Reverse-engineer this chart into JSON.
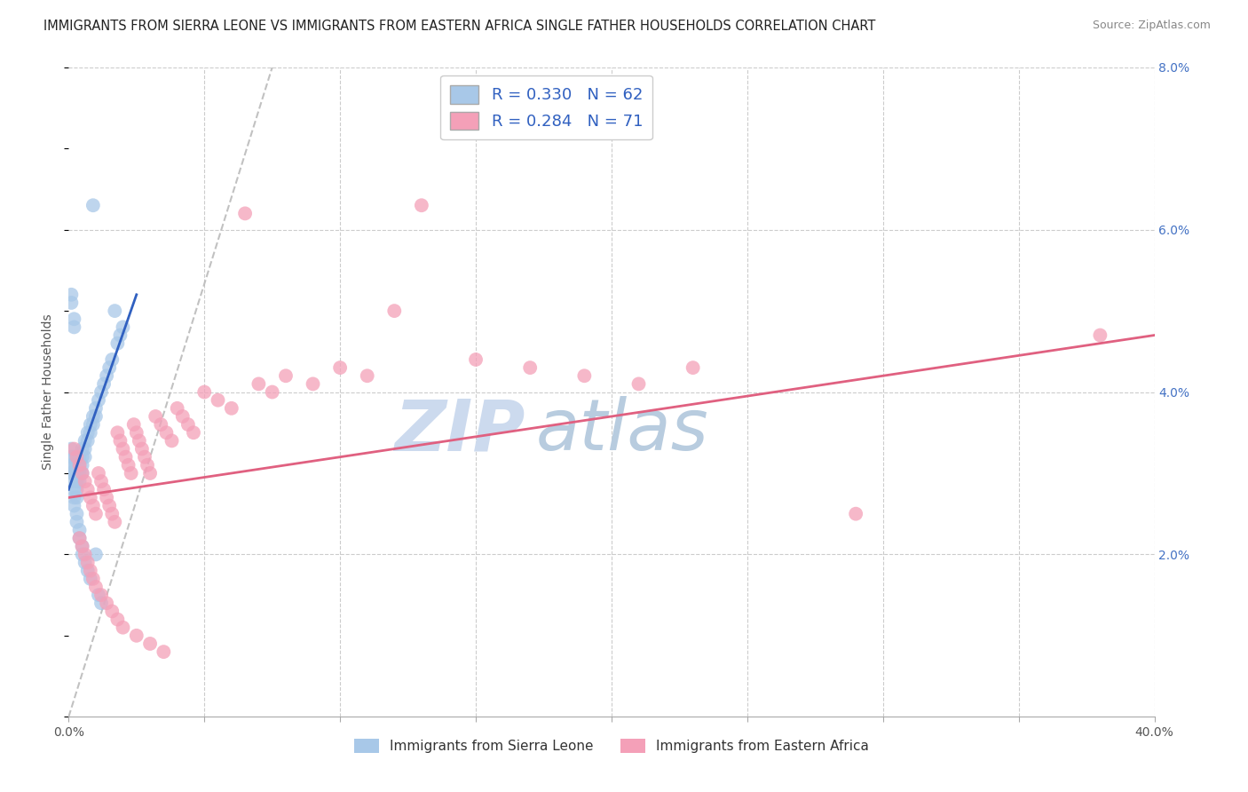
{
  "title": "IMMIGRANTS FROM SIERRA LEONE VS IMMIGRANTS FROM EASTERN AFRICA SINGLE FATHER HOUSEHOLDS CORRELATION CHART",
  "source": "Source: ZipAtlas.com",
  "ylabel": "Single Father Households",
  "legend_label1": "Immigrants from Sierra Leone",
  "legend_label2": "Immigrants from Eastern Africa",
  "color_blue": "#a8c8e8",
  "color_pink": "#f4a0b8",
  "color_blue_line": "#3060c0",
  "color_pink_line": "#e06080",
  "watermark_zip": "ZIP",
  "watermark_atlas": "atlas",
  "watermark_color_zip": "#c8d8ec",
  "watermark_color_atlas": "#b8cce0",
  "background_color": "#ffffff",
  "grid_color": "#cccccc",
  "R_blue": 0.33,
  "N_blue": 62,
  "R_pink": 0.284,
  "N_pink": 71,
  "xlim": [
    0.0,
    0.4
  ],
  "ylim": [
    0.0,
    0.08
  ],
  "blue_x": [
    0.001,
    0.001,
    0.001,
    0.001,
    0.001,
    0.002,
    0.002,
    0.002,
    0.002,
    0.002,
    0.002,
    0.003,
    0.003,
    0.003,
    0.003,
    0.003,
    0.004,
    0.004,
    0.004,
    0.004,
    0.005,
    0.005,
    0.005,
    0.005,
    0.006,
    0.006,
    0.006,
    0.007,
    0.007,
    0.008,
    0.008,
    0.009,
    0.009,
    0.01,
    0.01,
    0.011,
    0.012,
    0.013,
    0.014,
    0.015,
    0.016,
    0.017,
    0.018,
    0.019,
    0.02,
    0.001,
    0.001,
    0.002,
    0.002,
    0.003,
    0.003,
    0.004,
    0.004,
    0.005,
    0.005,
    0.006,
    0.007,
    0.008,
    0.009,
    0.01,
    0.011,
    0.012
  ],
  "blue_y": [
    0.03,
    0.031,
    0.032,
    0.033,
    0.029,
    0.03,
    0.031,
    0.032,
    0.028,
    0.027,
    0.026,
    0.031,
    0.03,
    0.029,
    0.028,
    0.027,
    0.032,
    0.031,
    0.03,
    0.029,
    0.033,
    0.032,
    0.031,
    0.03,
    0.034,
    0.033,
    0.032,
    0.035,
    0.034,
    0.036,
    0.035,
    0.037,
    0.036,
    0.038,
    0.037,
    0.039,
    0.04,
    0.041,
    0.042,
    0.043,
    0.044,
    0.05,
    0.046,
    0.047,
    0.048,
    0.051,
    0.052,
    0.048,
    0.049,
    0.025,
    0.024,
    0.023,
    0.022,
    0.021,
    0.02,
    0.019,
    0.018,
    0.017,
    0.063,
    0.02,
    0.015,
    0.014
  ],
  "pink_x": [
    0.002,
    0.003,
    0.004,
    0.005,
    0.006,
    0.007,
    0.008,
    0.009,
    0.01,
    0.011,
    0.012,
    0.013,
    0.014,
    0.015,
    0.016,
    0.017,
    0.018,
    0.019,
    0.02,
    0.021,
    0.022,
    0.023,
    0.024,
    0.025,
    0.026,
    0.027,
    0.028,
    0.029,
    0.03,
    0.032,
    0.034,
    0.036,
    0.038,
    0.04,
    0.042,
    0.044,
    0.046,
    0.05,
    0.055,
    0.06,
    0.065,
    0.07,
    0.075,
    0.08,
    0.09,
    0.1,
    0.11,
    0.12,
    0.13,
    0.15,
    0.17,
    0.19,
    0.21,
    0.23,
    0.004,
    0.005,
    0.006,
    0.007,
    0.008,
    0.009,
    0.01,
    0.012,
    0.014,
    0.016,
    0.018,
    0.02,
    0.025,
    0.03,
    0.035,
    0.29,
    0.38
  ],
  "pink_y": [
    0.033,
    0.032,
    0.031,
    0.03,
    0.029,
    0.028,
    0.027,
    0.026,
    0.025,
    0.03,
    0.029,
    0.028,
    0.027,
    0.026,
    0.025,
    0.024,
    0.035,
    0.034,
    0.033,
    0.032,
    0.031,
    0.03,
    0.036,
    0.035,
    0.034,
    0.033,
    0.032,
    0.031,
    0.03,
    0.037,
    0.036,
    0.035,
    0.034,
    0.038,
    0.037,
    0.036,
    0.035,
    0.04,
    0.039,
    0.038,
    0.062,
    0.041,
    0.04,
    0.042,
    0.041,
    0.043,
    0.042,
    0.05,
    0.063,
    0.044,
    0.043,
    0.042,
    0.041,
    0.043,
    0.022,
    0.021,
    0.02,
    0.019,
    0.018,
    0.017,
    0.016,
    0.015,
    0.014,
    0.013,
    0.012,
    0.011,
    0.01,
    0.009,
    0.008,
    0.025,
    0.047
  ],
  "blue_line_x": [
    0.0,
    0.025
  ],
  "blue_line_y": [
    0.028,
    0.052
  ],
  "pink_line_x": [
    0.0,
    0.4
  ],
  "pink_line_y": [
    0.027,
    0.047
  ],
  "dash_line_x": [
    0.0,
    0.075
  ],
  "dash_line_y": [
    0.0,
    0.08
  ]
}
